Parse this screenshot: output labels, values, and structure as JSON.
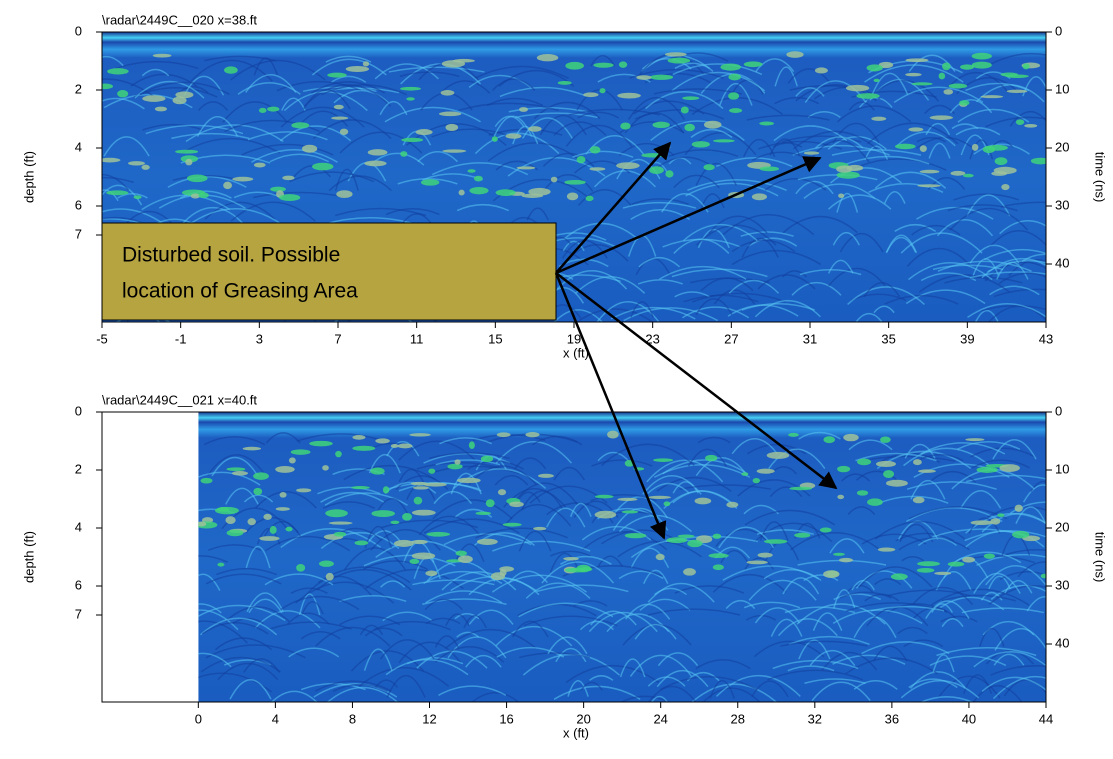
{
  "chart_data": [
    {
      "type": "radargram",
      "title": "\\radar\\2449C__020   x=38.ft",
      "xlabel": "x (ft)",
      "ylabel": "depth (ft)",
      "y2label": "time (ns)",
      "xlim": [
        -5,
        43
      ],
      "xticks": [
        -5,
        -1,
        3,
        7,
        11,
        15,
        19,
        23,
        27,
        31,
        35,
        39,
        43
      ],
      "image_xlim": [
        -5,
        43
      ],
      "ylim": [
        0,
        10
      ],
      "yticks": [
        0,
        2,
        4,
        6,
        7
      ],
      "y2lim": [
        0,
        50
      ],
      "y2ticks": [
        0,
        10,
        20,
        30,
        40
      ],
      "annotation": [
        "Disturbed soil.  Possible",
        "location of Greasing Area"
      ]
    },
    {
      "type": "radargram",
      "title": "\\radar\\2449C__021   x=40.ft",
      "xlabel": "x (ft)",
      "ylabel": "depth (ft)",
      "y2label": "time (ns)",
      "xlim": [
        -5,
        44
      ],
      "xticks": [
        0,
        4,
        8,
        12,
        16,
        20,
        24,
        28,
        32,
        36,
        40,
        44
      ],
      "image_xlim": [
        0,
        44
      ],
      "ylim": [
        0,
        10
      ],
      "yticks": [
        0,
        2,
        4,
        6,
        7
      ],
      "y2lim": [
        0,
        50
      ],
      "y2ticks": [
        0,
        10,
        20,
        30,
        40
      ]
    }
  ]
}
